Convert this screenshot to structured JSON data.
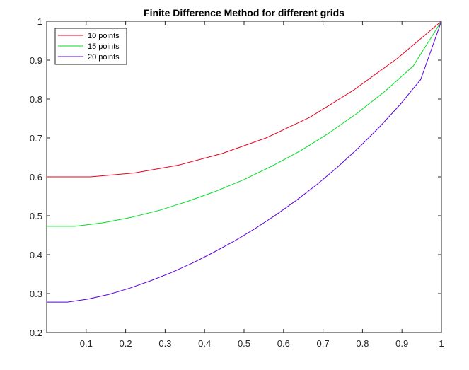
{
  "chart_data": {
    "type": "line",
    "title": "Finite Difference Method for different grids",
    "xlabel": "",
    "ylabel": "",
    "xlim": [
      0,
      1
    ],
    "ylim": [
      0.2,
      1
    ],
    "xticks": [
      "0.1",
      "0.2",
      "0.3",
      "0.4",
      "0.5",
      "0.6",
      "0.7",
      "0.8",
      "0.9",
      "1"
    ],
    "yticks": [
      "0.2",
      "0.3",
      "0.4",
      "0.5",
      "0.6",
      "0.7",
      "0.8",
      "0.9",
      "1"
    ],
    "grid": false,
    "legend_position": "top-left",
    "series": [
      {
        "name": "10 points",
        "color": "#e8001c",
        "x": [
          0,
          0.1111,
          0.2222,
          0.3333,
          0.4444,
          0.5556,
          0.6667,
          0.7778,
          0.8889,
          1
        ],
        "y": [
          0.6,
          0.6,
          0.61,
          0.63,
          0.66,
          0.7,
          0.753,
          0.823,
          0.905,
          1.0
        ]
      },
      {
        "name": "15 points",
        "color": "#00dd22",
        "x": [
          0,
          0.0714,
          0.1429,
          0.2143,
          0.2857,
          0.3571,
          0.4286,
          0.5,
          0.5714,
          0.6429,
          0.7143,
          0.7857,
          0.8571,
          0.9286,
          1
        ],
        "y": [
          0.473,
          0.473,
          0.482,
          0.496,
          0.514,
          0.537,
          0.563,
          0.593,
          0.628,
          0.667,
          0.712,
          0.763,
          0.82,
          0.885,
          1.0
        ]
      },
      {
        "name": "20 points",
        "color": "#5a00dd",
        "x": [
          0,
          0.0526,
          0.1053,
          0.1579,
          0.2105,
          0.2632,
          0.3158,
          0.3684,
          0.4211,
          0.4737,
          0.5263,
          0.5789,
          0.6316,
          0.6842,
          0.7368,
          0.7895,
          0.8421,
          0.8947,
          0.9474,
          1
        ],
        "y": [
          0.278,
          0.278,
          0.286,
          0.298,
          0.314,
          0.333,
          0.354,
          0.378,
          0.405,
          0.434,
          0.466,
          0.501,
          0.539,
          0.58,
          0.625,
          0.674,
          0.727,
          0.785,
          0.85,
          1.0
        ]
      }
    ]
  }
}
